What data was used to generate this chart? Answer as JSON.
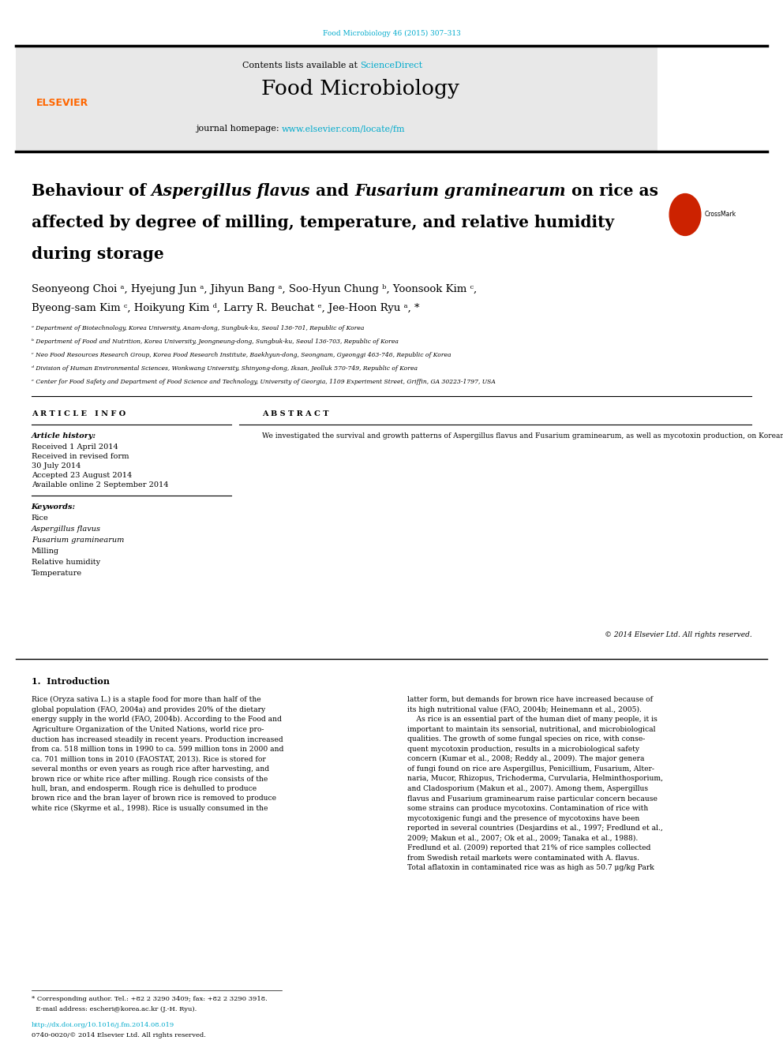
{
  "page_width": 9.92,
  "page_height": 13.23,
  "bg_color": "#ffffff",
  "top_citation": "Food Microbiology 46 (2015) 307–313",
  "top_citation_color": "#00aacc",
  "header_bg": "#e8e8e8",
  "header_text1": "Contents lists available at ",
  "header_sciencedirect": "ScienceDirect",
  "header_sciencedirect_color": "#00aacc",
  "journal_name": "Food Microbiology",
  "journal_homepage_text": "journal homepage: ",
  "journal_url": "www.elsevier.com/locate/fm",
  "journal_url_color": "#00aacc",
  "divider_color": "#000000",
  "title_plain": "Behaviour of ",
  "title_italic1": "Aspergillus flavus",
  "title_mid1": " and ",
  "title_italic2": "Fusarium graminearum",
  "title_mid2": " on rice as",
  "title_line2": "affected by degree of milling, temperature, and relative humidity",
  "title_line3": "during storage",
  "author_line1": "Seonyeong Choi ᵃ, Hyejung Jun ᵃ, Jihyun Bang ᵃ, Soo-Hyun Chung ᵇ, Yoonsook Kim ᶜ,",
  "author_line2": "Byeong-sam Kim ᶜ, Hoikyung Kim ᵈ, Larry R. Beuchat ᵉ, Jee-Hoon Ryu ᵃ, *",
  "affil_a": "ᵃ Department of Biotechnology, Korea University, Anam-dong, Sungbuk-ku, Seoul 136-701, Republic of Korea",
  "affil_b": "ᵇ Department of Food and Nutrition, Korea University, Jeongneung-dong, Sungbuk-ku, Seoul 136-703, Republic of Korea",
  "affil_c": "ᶜ Neo Food Resources Research Group, Korea Food Research Institute, Baekhyun-dong, Seongnam, Gyeonggi 463-746, Republic of Korea",
  "affil_d": "ᵈ Division of Human Environmental Sciences, Wonkwang University, Shinyong-dong, Iksan, Jeolluk 570-749, Republic of Korea",
  "affil_e": "ᵉ Center for Food Safety and Department of Food Science and Technology, University of Georgia, 1109 Experiment Street, Griffin, GA 30223-1797, USA",
  "article_info_header": "A R T I C L E   I N F O",
  "abstract_header": "A B S T R A C T",
  "article_history_label": "Article history:",
  "received": "Received 1 April 2014",
  "received_revised": "Received in revised form",
  "received_revised2": "30 July 2014",
  "accepted": "Accepted 23 August 2014",
  "available": "Available online 2 September 2014",
  "keywords_label": "Keywords:",
  "keywords": [
    "Rice",
    "Aspergillus flavus",
    "Fusarium graminearum",
    "Milling",
    "Relative humidity",
    "Temperature"
  ],
  "keywords_italic": [
    false,
    true,
    true,
    false,
    false,
    false
  ],
  "abstract_text": "We investigated the survival and growth patterns of Aspergillus flavus and Fusarium graminearum, as well as mycotoxin production, on Korean rice as affected by the degree of milling (rough, brown, and white rice) and storage conditions (21 °C/85% relative humidity [RH], 21 °C/97% RH, and 30 °C/85% RH). When rice was stored at 21 °C/85% RH, the population of A. flavus remained constant and aflatoxin was not produced, regardless of the degree of milling. At 21 °C/97% RH and 30 °C/85% RH, the populations of A. flavus increased significantly (P ≤ 0.05) and aflatoxins were produced. The highest population of A. flavus and highest amount of aflatoxin B₁ were observed on brown rice stored at 21 °C/97% RH. For F. graminearum, when stored at 85% RH, the populations were reduced to less than a detectable level (5 CFU/g of rice) within 120 days and no deoxynivalenol (DON) was produced, regardless of the degree of milling and storage temperature. However, at 21 °C/97% RH, the population of F. graminearum increased significantly (P ≤ 0.05) and DON was produced on all types of rice. Findings from this study provide insights concerning storage conditions necessary to prevent growth and mycotoxin production by A. flavus and F. graminearum on Korean rice with different degrees of milling.",
  "copyright": "© 2014 Elsevier Ltd. All rights reserved.",
  "intro_header": "1.  Introduction",
  "intro_col1": "Rice (Oryza sativa L.) is a staple food for more than half of the\nglobal population (FAO, 2004a) and provides 20% of the dietary\nenergy supply in the world (FAO, 2004b). According to the Food and\nAgriculture Organization of the United Nations, world rice pro-\nduction has increased steadily in recent years. Production increased\nfrom ca. 518 million tons in 1990 to ca. 599 million tons in 2000 and\nca. 701 million tons in 2010 (FAOSTAT, 2013). Rice is stored for\nseveral months or even years as rough rice after harvesting, and\nbrown rice or white rice after milling. Rough rice consists of the\nhull, bran, and endosperm. Rough rice is dehulled to produce\nbrown rice and the bran layer of brown rice is removed to produce\nwhite rice (Skyrme et al., 1998). Rice is usually consumed in the",
  "intro_col2": "latter form, but demands for brown rice have increased because of\nits high nutritional value (FAO, 2004b; Heinemann et al., 2005).\n    As rice is an essential part of the human diet of many people, it is\nimportant to maintain its sensorial, nutritional, and microbiological\nqualities. The growth of some fungal species on rice, with conse-\nquent mycotoxin production, results in a microbiological safety\nconcern (Kumar et al., 2008; Reddy al., 2009). The major genera\nof fungi found on rice are Aspergillus, Penicillium, Fusarium, Alter-\nnaria, Mucor, Rhizopus, Trichoderma, Curvularia, Helminthosporium,\nand Cladosporium (Makun et al., 2007). Among them, Aspergillus\nflavus and Fusarium graminearum raise particular concern because\nsome strains can produce mycotoxins. Contamination of rice with\nmycotoxigenic fungi and the presence of mycotoxins have been\nreported in several countries (Desjardins et al., 1997; Fredlund et al.,\n2009; Makun et al., 2007; Ok et al., 2009; Tanaka et al., 1988).\nFredlund et al. (2009) reported that 21% of rice samples collected\nfrom Swedish retail markets were contaminated with A. flavus.\nTotal aflatoxin in contaminated rice was as high as 50.7 μg/kg Park",
  "footnote_line1": "* Corresponding author. Tel.: +82 2 3290 3409; fax: +82 2 3290 3918.",
  "footnote_line2": "  E-mail address: escheri@korea.ac.kr (J.-H. Ryu).",
  "doi": "http://dx.doi.org/10.1016/j.fm.2014.08.019",
  "issn": "0740-0020/© 2014 Elsevier Ltd. All rights reserved.",
  "elsevier_color": "#FF6600",
  "crossmark_color": "#cc2200"
}
